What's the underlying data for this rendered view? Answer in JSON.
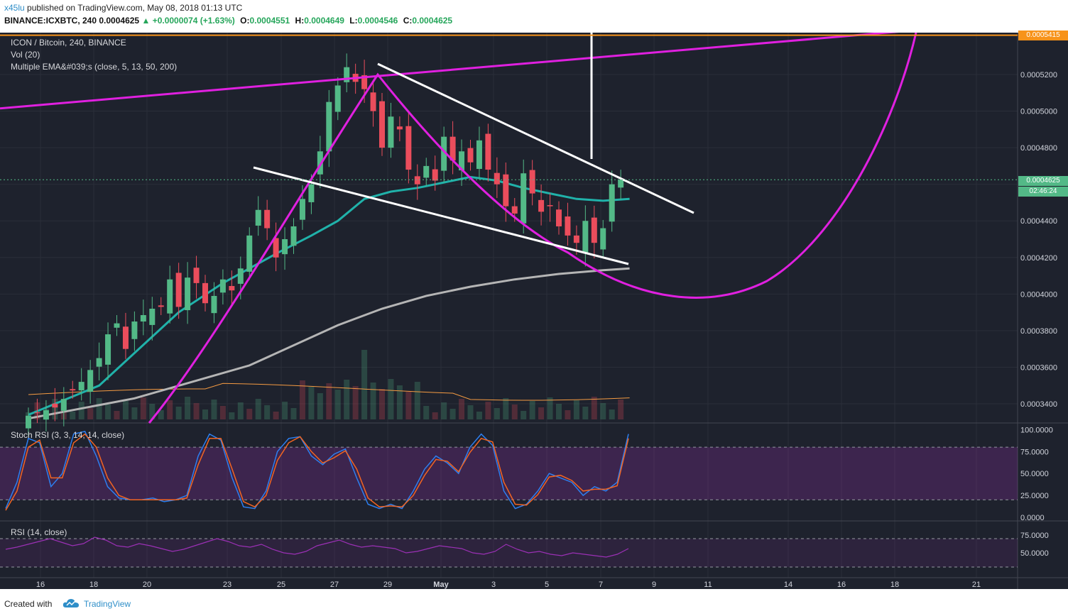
{
  "header": {
    "user": "x45lu",
    "published": "published on TradingView.com, May 08, 2018 01:13 UTC",
    "symbol": "BINANCE:ICXBTC, 240",
    "price": "0.0004625",
    "arrow": "▲",
    "change": "+0.0000074 (+1.63%)",
    "o_label": "O:",
    "o": "0.0004551",
    "h_label": "H:",
    "h": "0.0004649",
    "l_label": "L:",
    "l": "0.0004546",
    "c_label": "C:",
    "c": "0.0004625"
  },
  "legend": {
    "title": "ICON / Bitcoin, 240, BINANCE",
    "vol": "Vol (20)",
    "ema": "Multiple EMA&#039;s (close, 5, 13, 50, 200)",
    "stoch": "Stoch RSI (3, 3, 14, 14, close)",
    "rsi": "RSI (14, close)"
  },
  "price_tags": {
    "resistance": "0.0005415",
    "last": "0.0004625",
    "countdown": "02:46:24"
  },
  "footer": {
    "created": "Created with",
    "brand": "TradingView"
  },
  "colors": {
    "background": "#1e222d",
    "up": "#53b987",
    "down": "#eb4d5c",
    "ema50": "#20b2aa",
    "ema200": "#b5b5b5",
    "drawing_magenta": "#e020e0",
    "drawing_white": "#ffffff",
    "resistance": "#f7931a",
    "stoch_k": "#2d7ff0",
    "stoch_d": "#f26522",
    "rsi": "#9b30b5"
  },
  "chart_data": [
    {
      "type": "candlestick",
      "title": "ICON / Bitcoin, 240, BINANCE",
      "x_ticks": [
        "16",
        "18",
        "20",
        "23",
        "25",
        "27",
        "29",
        "May",
        "3",
        "5",
        "7",
        "9",
        "11",
        "14",
        "16",
        "18",
        "21"
      ],
      "y_ticks": [
        "0.0005200",
        "0.0005000",
        "0.0004800",
        "0.0004625",
        "0.0004400",
        "0.0004200",
        "0.0004000",
        "0.0003800",
        "0.0003600",
        "0.0003400"
      ],
      "ylim": [
        0.000331,
        0.000547
      ],
      "close_path": [
        [
          0,
          0.000332
        ],
        [
          4,
          0.000338
        ],
        [
          7,
          0.000352
        ],
        [
          9,
          0.000365
        ],
        [
          10,
          0.000378
        ],
        [
          11,
          0.000384
        ],
        [
          12,
          0.00037
        ],
        [
          13,
          0.000385
        ],
        [
          15,
          0.000392
        ],
        [
          16,
          0.000393
        ],
        [
          17,
          0.000408
        ],
        [
          18,
          0.000393
        ],
        [
          19,
          0.000409
        ],
        [
          20,
          0.000406
        ],
        [
          21,
          0.000395
        ],
        [
          22,
          0.000399
        ],
        [
          23,
          0.000408
        ],
        [
          24,
          0.000402
        ],
        [
          25,
          0.000414
        ],
        [
          26,
          0.000432
        ],
        [
          27,
          0.000446
        ],
        [
          28,
          0.000436
        ],
        [
          29,
          0.00042
        ],
        [
          30,
          0.00043
        ],
        [
          31,
          0.000437
        ],
        [
          32,
          0.000452
        ],
        [
          33,
          0.00046
        ],
        [
          34,
          0.000478
        ],
        [
          35,
          0.000505
        ],
        [
          36,
          0.000514
        ],
        [
          37,
          0.000524
        ],
        [
          38,
          0.000516
        ],
        [
          39,
          0.000512
        ],
        [
          40,
          0.0005
        ],
        [
          41,
          0.00048
        ],
        [
          42,
          0.000497
        ],
        [
          43,
          0.00049
        ],
        [
          44,
          0.000468
        ],
        [
          45,
          0.00046
        ],
        [
          46,
          0.00047
        ],
        [
          47,
          0.000462
        ],
        [
          48,
          0.000486
        ],
        [
          49,
          0.000473
        ],
        [
          50,
          0.000478
        ],
        [
          51,
          0.000472
        ],
        [
          52,
          0.000484
        ],
        [
          53,
          0.000468
        ],
        [
          54,
          0.00046
        ],
        [
          55,
          0.000448
        ],
        [
          56,
          0.000444
        ],
        [
          57,
          0.000466
        ],
        [
          58,
          0.000455
        ],
        [
          59,
          0.000445
        ],
        [
          60,
          0.000448
        ],
        [
          61,
          0.000437
        ],
        [
          62,
          0.000432
        ],
        [
          63,
          0.000428
        ],
        [
          64,
          0.00044
        ],
        [
          65,
          0.000428
        ],
        [
          66,
          0.000436
        ],
        [
          67,
          0.00046
        ],
        [
          68,
          0.0004625
        ]
      ],
      "ema_50_path": [
        [
          0,
          0.000334
        ],
        [
          8,
          0.00035
        ],
        [
          17,
          0.00039
        ],
        [
          22,
          0.000406
        ],
        [
          28,
          0.000422
        ],
        [
          32,
          0.000432
        ],
        [
          35,
          0.00044
        ],
        [
          38,
          0.000452
        ],
        [
          41,
          0.000456
        ],
        [
          44,
          0.000458
        ],
        [
          47,
          0.000461
        ],
        [
          50,
          0.000464
        ],
        [
          53,
          0.000462
        ],
        [
          56,
          0.000458
        ],
        [
          59,
          0.000455
        ],
        [
          62,
          0.000452
        ],
        [
          65,
          0.000451
        ],
        [
          68,
          0.000452
        ]
      ],
      "ema_200_path": [
        [
          0,
          0.000332
        ],
        [
          12,
          0.000343
        ],
        [
          25,
          0.000361
        ],
        [
          35,
          0.000383
        ],
        [
          40,
          0.000392
        ],
        [
          45,
          0.000399
        ],
        [
          50,
          0.000404
        ],
        [
          55,
          0.000408
        ],
        [
          60,
          0.000411
        ],
        [
          65,
          0.000413
        ],
        [
          68,
          0.000414
        ]
      ],
      "resistance_level": 0.0005415,
      "last_price": 0.0004625
    },
    {
      "type": "line",
      "title": "Stoch RSI (3, 3, 14, 14, close)",
      "y_ticks": [
        "100.0000",
        "75.0000",
        "50.0000",
        "25.0000",
        "0.0000"
      ],
      "ylim": [
        0,
        100
      ],
      "band": [
        20,
        80
      ],
      "series": [
        {
          "values": [
            10,
            40,
            90,
            85,
            35,
            50,
            95,
            98,
            70,
            35,
            22,
            20,
            20,
            22,
            18,
            20,
            25,
            70,
            95,
            88,
            45,
            12,
            10,
            30,
            75,
            90,
            92,
            70,
            60,
            72,
            78,
            45,
            15,
            10,
            15,
            10,
            30,
            55,
            70,
            62,
            50,
            80,
            95,
            82,
            30,
            10,
            15,
            30,
            50,
            45,
            40,
            25,
            35,
            30,
            40,
            95
          ]
        },
        {
          "values": [
            8,
            30,
            80,
            88,
            45,
            45,
            85,
            95,
            80,
            45,
            25,
            20,
            20,
            20,
            20,
            20,
            22,
            60,
            90,
            90,
            55,
            18,
            12,
            25,
            65,
            85,
            92,
            75,
            62,
            68,
            76,
            55,
            22,
            12,
            13,
            12,
            25,
            48,
            66,
            64,
            52,
            74,
            90,
            86,
            40,
            15,
            14,
            26,
            46,
            48,
            42,
            30,
            32,
            32,
            36,
            90
          ]
        }
      ]
    },
    {
      "type": "line",
      "title": "RSI (14, close)",
      "y_ticks": [
        "75.0000",
        "50.0000"
      ],
      "ylim": [
        20,
        80
      ],
      "band": [
        30,
        70
      ],
      "series": [
        {
          "values": [
            55,
            58,
            62,
            66,
            70,
            65,
            60,
            63,
            72,
            68,
            60,
            58,
            63,
            60,
            56,
            52,
            55,
            60,
            65,
            70,
            66,
            60,
            58,
            62,
            55,
            50,
            48,
            52,
            60,
            64,
            68,
            62,
            58,
            60,
            58,
            56,
            50,
            52,
            56,
            60,
            58,
            56,
            50,
            48,
            52,
            62,
            55,
            50,
            52,
            48,
            46,
            50,
            48,
            46,
            44,
            48,
            56
          ]
        }
      ]
    }
  ]
}
